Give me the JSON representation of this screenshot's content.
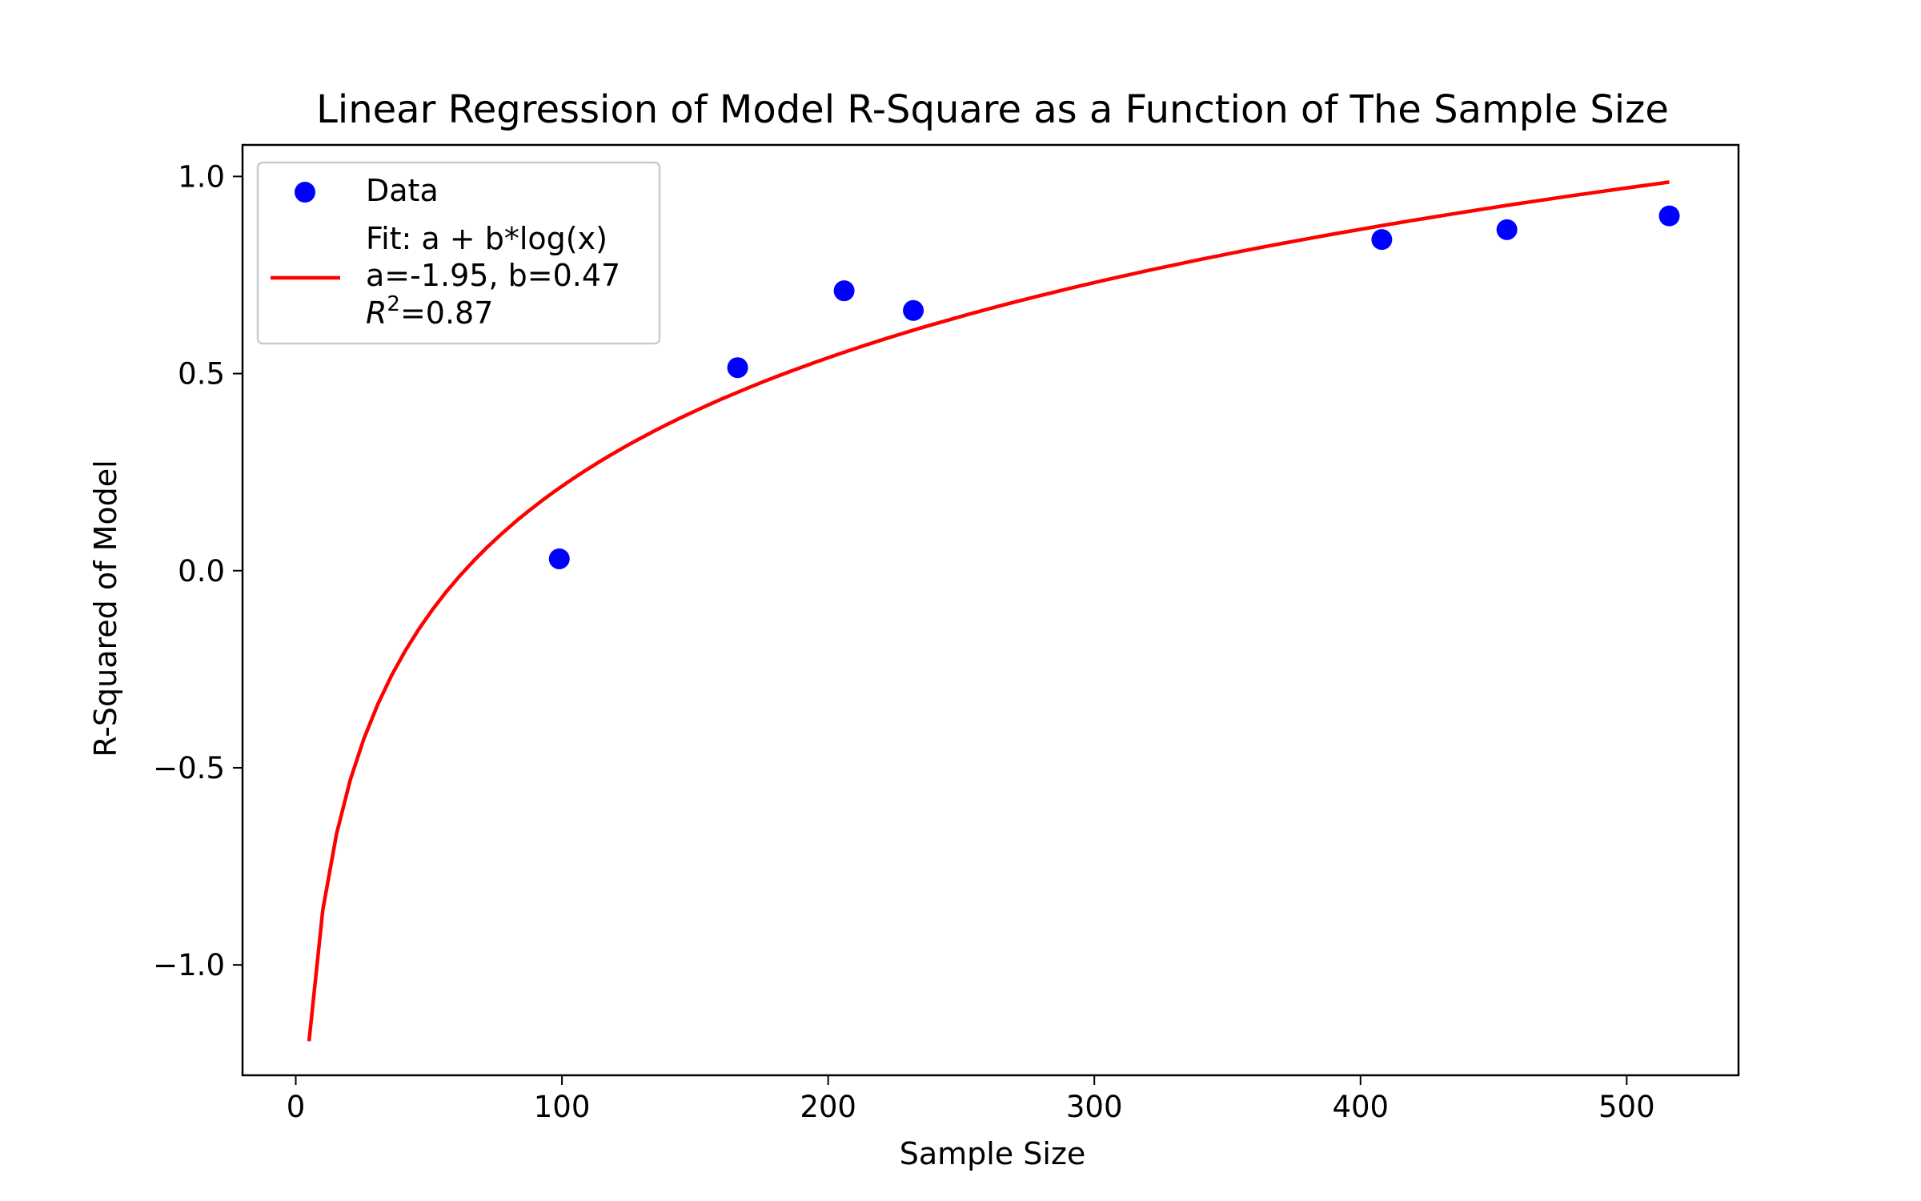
{
  "chart_data": {
    "type": "scatter",
    "title": "Linear Regression of Model R-Square as a Function of The Sample Size",
    "xlabel": "Sample Size",
    "ylabel": "R-Squared of Model",
    "xlim": [
      -20,
      542
    ],
    "ylim": [
      -1.28,
      1.08
    ],
    "xticks": [
      0,
      100,
      200,
      300,
      400,
      500
    ],
    "xtick_labels": [
      "0",
      "100",
      "200",
      "300",
      "400",
      "500"
    ],
    "yticks": [
      -1.0,
      -0.5,
      0.0,
      0.5,
      1.0
    ],
    "ytick_labels": [
      "−1.0",
      "−0.5",
      "0.0",
      "0.5",
      "1.0"
    ],
    "grid": false,
    "legend_placement": "upper-left",
    "series": [
      {
        "name": "Data",
        "kind": "scatter",
        "color": "#0000ff",
        "x": [
          99,
          166,
          206,
          232,
          408,
          455,
          516
        ],
        "y": [
          0.03,
          0.515,
          0.71,
          0.66,
          0.84,
          0.865,
          0.9
        ]
      },
      {
        "name": "Fit: a + b*log(x)",
        "kind": "line",
        "color": "#ff0000",
        "fit": {
          "a": -1.95,
          "b": 0.47
        },
        "x_range": [
          5,
          516
        ]
      }
    ],
    "legend": {
      "data_label": "Data",
      "fit_line1": "Fit: a + b*log(x)",
      "fit_line2": "a=-1.95, b=0.47",
      "r2_symbol": "R",
      "r2_sup": "2",
      "r2_value": "=0.87"
    }
  }
}
